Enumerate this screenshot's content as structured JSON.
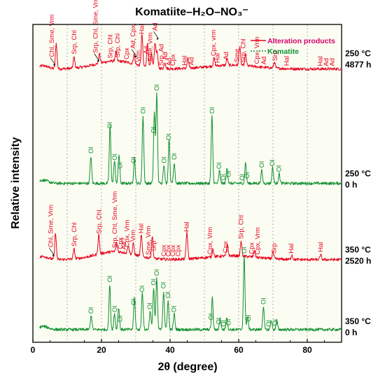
{
  "chart_data": {
    "type": "line",
    "title": "Komatiite–H₂O–NO₃⁻",
    "xlabel": "2θ (degree)",
    "ylabel": "Relative intensity",
    "xlim": [
      0,
      90
    ],
    "x_ticks": [
      "0",
      "20",
      "40",
      "60",
      "80"
    ],
    "grid": "vertical dotted lines every 10°",
    "plot_background": "#fcfdf2",
    "legend": {
      "placement": "top-right",
      "entries": [
        {
          "label": "Alteration products",
          "color": "#e8001c",
          "style": "solid"
        },
        {
          "label": "Komatite",
          "color": "#109030",
          "style": "dotted"
        }
      ]
    },
    "series": [
      {
        "condition_lines": [
          "250 °C",
          "4877 h"
        ],
        "color": "#e8001c",
        "baseline": 0.86,
        "peaks": [
          [
            6.8,
            0.08
          ],
          [
            12,
            0.035
          ],
          [
            19.4,
            0.03
          ],
          [
            24.2,
            0.03
          ],
          [
            29.5,
            0.03
          ],
          [
            31.8,
            0.1
          ],
          [
            33.4,
            0.075
          ],
          [
            34.6,
            0.045
          ],
          [
            35.6,
            0.08
          ],
          [
            36.2,
            0.05
          ],
          [
            38.5,
            0.02
          ],
          [
            45.2,
            0.03
          ],
          [
            52.8,
            0.025
          ],
          [
            56.6,
            0.02
          ],
          [
            60.3,
            0.06
          ],
          [
            62,
            0.035
          ],
          [
            70.4,
            0.02
          ]
        ],
        "labels": [
          {
            "x": 5.5,
            "text": "Chl, Sme, Vrm",
            "arrow": true
          },
          {
            "x": 12,
            "text": "Srp, Chl"
          },
          {
            "x": 18.3,
            "text": "Srp, Chl, Sme, Vrm",
            "arrow": true
          },
          {
            "x": 22.6,
            "text": "Srp, Chl"
          },
          {
            "x": 24.7,
            "text": "Srp, Chl"
          },
          {
            "x": 27.3,
            "text": "Cpx"
          },
          {
            "x": 29.2,
            "text": "Ad, Cpx,",
            "arrow": true
          },
          {
            "x": 30.7,
            "text": "Vrm"
          },
          {
            "x": 31.7,
            "text": "Hal"
          },
          {
            "x": 33.1,
            "text": "Ad"
          },
          {
            "x": 34.2,
            "text": "Sme, Vrm"
          },
          {
            "x": 35.6,
            "text": "Ad",
            "arrow": true
          },
          {
            "x": 37.5,
            "text": "Srp, Ad"
          },
          {
            "x": 38.6,
            "text": "Ad"
          },
          {
            "x": 39.7,
            "text": "Ad"
          },
          {
            "x": 40.8,
            "text": "Cpx"
          },
          {
            "x": 44.2,
            "text": "Hal"
          },
          {
            "x": 46.2,
            "text": "Ad"
          },
          {
            "x": 52.7,
            "text": "Cpx, vrm"
          },
          {
            "x": 53.8,
            "text": "Hal"
          },
          {
            "x": 56.3,
            "text": "Ad"
          },
          {
            "x": 59.5,
            "text": "Sme"
          },
          {
            "x": 61.3,
            "text": "Srp, Chl"
          },
          {
            "x": 65.3,
            "text": "Cpx, Vrm"
          },
          {
            "x": 67.3,
            "text": "Ad"
          },
          {
            "x": 70.6,
            "text": "Srp"
          },
          {
            "x": 74,
            "text": "Hal"
          },
          {
            "x": 83.8,
            "text": "Hal"
          },
          {
            "x": 85.5,
            "text": "Ad"
          },
          {
            "x": 87.2,
            "text": "Ad"
          }
        ]
      },
      {
        "condition_lines": [
          "250 °C",
          "0 h"
        ],
        "color": "#109030",
        "baseline": 0.5,
        "peaks": [
          [
            16.9,
            0.085
          ],
          [
            22.5,
            0.18
          ],
          [
            23.8,
            0.07
          ],
          [
            25.1,
            0.09
          ],
          [
            29.6,
            0.08
          ],
          [
            32.1,
            0.21
          ],
          [
            35.4,
            0.22
          ],
          [
            36.1,
            0.28
          ],
          [
            38.2,
            0.06
          ],
          [
            39.7,
            0.14
          ],
          [
            41.2,
            0.065
          ],
          [
            52.2,
            0.21
          ],
          [
            54.4,
            0.04
          ],
          [
            56.6,
            0.05
          ],
          [
            62,
            0.065
          ],
          [
            66.7,
            0.04
          ],
          [
            69.9,
            0.05
          ],
          [
            71.8,
            0.03
          ]
        ],
        "labels": [
          {
            "x": 16.9,
            "text": "Ol"
          },
          {
            "x": 22.4,
            "text": "Ol"
          },
          {
            "x": 23.9,
            "text": "Ol"
          },
          {
            "x": 25.4,
            "text": "Ol"
          },
          {
            "x": 29.4,
            "text": "Ol"
          },
          {
            "x": 32.1,
            "text": "Ol"
          },
          {
            "x": 35.2,
            "text": "Ol"
          },
          {
            "x": 36.1,
            "text": "Ol"
          },
          {
            "x": 38.3,
            "text": "Ol"
          },
          {
            "x": 39.6,
            "text": "Ol"
          },
          {
            "x": 41.2,
            "text": "Ol"
          },
          {
            "x": 52.2,
            "text": "Ol"
          },
          {
            "x": 54.3,
            "text": "Ol"
          },
          {
            "x": 55.5,
            "text": "Ol"
          },
          {
            "x": 57,
            "text": "Ol"
          },
          {
            "x": 61,
            "text": "Ol"
          },
          {
            "x": 62.5,
            "text": "Ol"
          },
          {
            "x": 66.7,
            "text": "Ol"
          },
          {
            "x": 69.8,
            "text": "Ol"
          },
          {
            "x": 71.7,
            "text": "Ol"
          }
        ]
      },
      {
        "condition_lines": [
          "350 °C",
          "2520 h"
        ],
        "color": "#e8001c",
        "baseline": 0.26,
        "peaks": [
          [
            6.6,
            0.085
          ],
          [
            12,
            0.03
          ],
          [
            19.2,
            0.06
          ],
          [
            24.4,
            0.03
          ],
          [
            27.8,
            0.025
          ],
          [
            29.3,
            0.035
          ],
          [
            31.6,
            0.07
          ],
          [
            34.8,
            0.07
          ],
          [
            44.9,
            0.085
          ],
          [
            52.5,
            0.025
          ],
          [
            56.7,
            0.035
          ],
          [
            60.7,
            0.045
          ],
          [
            64.6,
            0.02
          ],
          [
            70,
            0.02
          ],
          [
            75.5,
            0.015
          ],
          [
            83.9,
            0.015
          ]
        ],
        "labels": [
          {
            "x": 5.2,
            "text": "Chl, Sme, Vrm",
            "arrow": true
          },
          {
            "x": 12,
            "text": "Srp, Chl"
          },
          {
            "x": 19.3,
            "text": "Srp, Chl."
          },
          {
            "x": 23.9,
            "text": "Srp, Chl, Sme, Vrm"
          },
          {
            "x": 25.5,
            "text": "Cpx"
          },
          {
            "x": 26.5,
            "text": "Ad?"
          },
          {
            "x": 27.5,
            "text": "Cpx, Vrm"
          },
          {
            "x": 29.2,
            "text": "Vrm"
          },
          {
            "x": 31.5,
            "text": "Hal"
          },
          {
            "x": 33.7,
            "text": "Sme, Vrm"
          },
          {
            "x": 35.2,
            "text": "Srp"
          },
          {
            "x": 38.2,
            "text": "Cpx"
          },
          {
            "x": 39.5,
            "text": "Cpx"
          },
          {
            "x": 40.8,
            "text": "Cpx"
          },
          {
            "x": 42.3,
            "text": "Cpx"
          },
          {
            "x": 44.8,
            "text": "Hal"
          },
          {
            "x": 51.6,
            "text": "Cpx, Vrm"
          },
          {
            "x": 56.1,
            "text": "Cpx"
          },
          {
            "x": 60.7,
            "text": "Srp, Chl"
          },
          {
            "x": 63.8,
            "text": "Cpx"
          },
          {
            "x": 65.5,
            "text": "Cpx, Vrm"
          },
          {
            "x": 70.3,
            "text": "Srp"
          },
          {
            "x": 75.3,
            "text": "Hal"
          },
          {
            "x": 83.9,
            "text": "Hal"
          }
        ]
      },
      {
        "condition_lines": [
          "350 °C",
          "0 h"
        ],
        "color": "#109030",
        "baseline": 0.04,
        "peaks": [
          [
            17,
            0.045
          ],
          [
            22.4,
            0.14
          ],
          [
            23.8,
            0.05
          ],
          [
            25,
            0.07
          ],
          [
            29.6,
            0.1
          ],
          [
            31.9,
            0.12
          ],
          [
            34.2,
            0.06
          ],
          [
            35.2,
            0.13
          ],
          [
            36.1,
            0.16
          ],
          [
            38.1,
            0.12
          ],
          [
            39.4,
            0.09
          ],
          [
            41.2,
            0.05
          ],
          [
            52.3,
            0.1
          ],
          [
            54.6,
            0.035
          ],
          [
            56.5,
            0.04
          ],
          [
            61.6,
            0.23
          ],
          [
            62.6,
            0.04
          ],
          [
            67.2,
            0.07
          ],
          [
            69.5,
            0.03
          ],
          [
            71.1,
            0.03
          ]
        ],
        "labels": [
          {
            "x": 16.9,
            "text": "Ol"
          },
          {
            "x": 22.4,
            "text": "Ol"
          },
          {
            "x": 23.9,
            "text": "Ol"
          },
          {
            "x": 25.4,
            "text": "Ol"
          },
          {
            "x": 29.4,
            "text": "Ol"
          },
          {
            "x": 31.8,
            "text": "Ol"
          },
          {
            "x": 34.1,
            "text": "Ol"
          },
          {
            "x": 35.2,
            "text": "Ol"
          },
          {
            "x": 36.1,
            "text": "Ol"
          },
          {
            "x": 38.1,
            "text": "Ol"
          },
          {
            "x": 39.4,
            "text": "Ol"
          },
          {
            "x": 41.1,
            "text": "Ol"
          },
          {
            "x": 51.9,
            "text": "Ol"
          },
          {
            "x": 54.2,
            "text": "Ol"
          },
          {
            "x": 55.6,
            "text": "Ol"
          },
          {
            "x": 57,
            "text": "Ol"
          },
          {
            "x": 61.6,
            "text": "Ol"
          },
          {
            "x": 62.9,
            "text": "Ol"
          },
          {
            "x": 67.2,
            "text": "Ol"
          },
          {
            "x": 68.8,
            "text": "Ol"
          },
          {
            "x": 70.6,
            "text": "Ol"
          }
        ]
      }
    ]
  }
}
